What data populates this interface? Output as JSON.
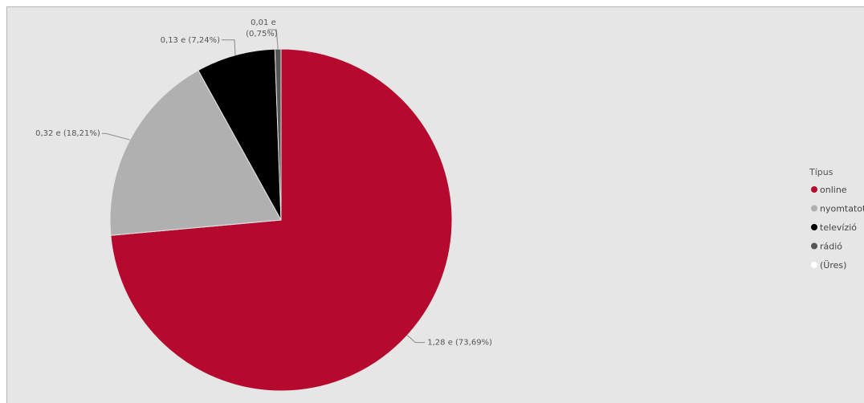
{
  "chart_data": {
    "type": "pie",
    "legend": {
      "title": "Típus",
      "position": "right"
    },
    "slices": [
      {
        "name": "online",
        "value": 1.28,
        "label": "1,28 e (73,69%)",
        "color": "#b5092e"
      },
      {
        "name": "nyomtatott",
        "value": 0.32,
        "label": "0,32 e (18,21%)",
        "color": "#b0b0b0"
      },
      {
        "name": "televízió",
        "value": 0.13,
        "label": "0,13 e (7,24%)",
        "color": "#000000"
      },
      {
        "name": "rádió",
        "value": 0.01,
        "label_lines": [
          "0,01 e",
          "(0,75%)"
        ],
        "color": "#555555"
      }
    ],
    "legend_entries": [
      {
        "name": "online",
        "color": "#b5092e"
      },
      {
        "name": "nyomtatott",
        "color": "#b0b0b0"
      },
      {
        "name": "televízió",
        "color": "#000000"
      },
      {
        "name": "rádió",
        "color": "#555555"
      },
      {
        "name": "(Üres)",
        "color": "#ffffff"
      }
    ]
  }
}
